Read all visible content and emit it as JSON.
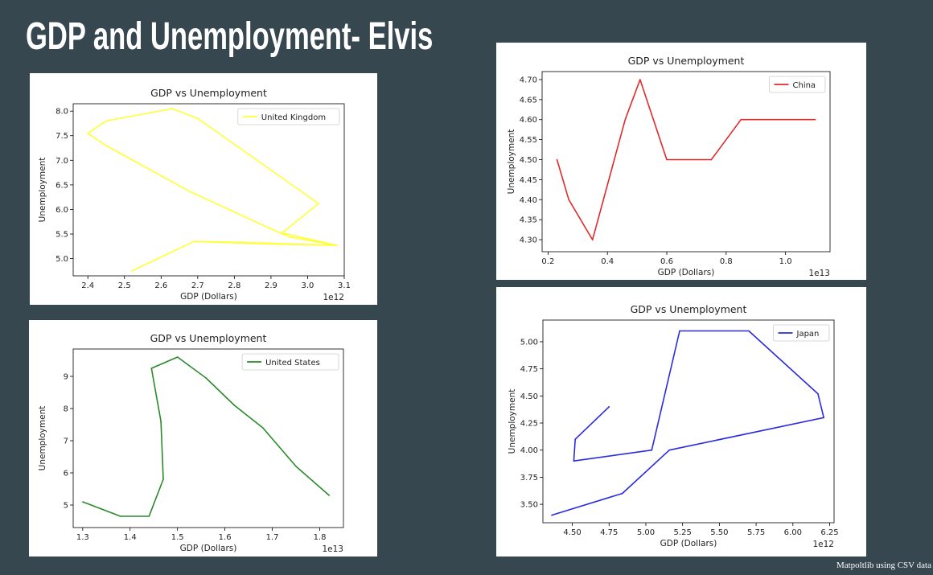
{
  "slide": {
    "title": "GDP and Unemployment- Elvis",
    "footnote": "Matpoltlib  using CSV data"
  },
  "chart_data": [
    {
      "id": "uk",
      "type": "line",
      "title": "GDP vs Unemployment",
      "xlabel": "GDP (Dollars)",
      "ylabel": "Unemployment",
      "x_offset_label": "1e12",
      "xlim": [
        2.36,
        3.1
      ],
      "ylim": [
        4.65,
        8.15
      ],
      "xticks": [
        2.4,
        2.5,
        2.6,
        2.7,
        2.8,
        2.9,
        3.0,
        3.1
      ],
      "xtick_labels": [
        "2.4",
        "2.5",
        "2.6",
        "2.7",
        "2.8",
        "2.9",
        "3.0",
        "3.1"
      ],
      "yticks": [
        5.0,
        5.5,
        6.0,
        6.5,
        7.0,
        7.5,
        8.0
      ],
      "ytick_labels": [
        "5.0",
        "5.5",
        "6.0",
        "6.5",
        "7.0",
        "7.5",
        "8.0"
      ],
      "legend_position": "top-right",
      "series": [
        {
          "name": "United Kingdom",
          "color": "#ffff33",
          "x": [
            2.52,
            2.69,
            2.89,
            3.08,
            2.95,
            2.89,
            2.68,
            2.45,
            2.4,
            2.45,
            2.63,
            2.7,
            3.03,
            2.93,
            3.08,
            2.82,
            2.7
          ],
          "y": [
            4.75,
            5.35,
            5.3,
            5.27,
            5.44,
            5.64,
            6.36,
            7.3,
            7.55,
            7.8,
            8.05,
            7.85,
            6.12,
            5.52,
            5.27,
            5.33,
            5.35
          ]
        }
      ]
    },
    {
      "id": "us",
      "type": "line",
      "title": "GDP vs Unemployment",
      "xlabel": "GDP (Dollars)",
      "ylabel": "Unemployment",
      "x_offset_label": "1e13",
      "xlim": [
        1.28,
        1.85
      ],
      "ylim": [
        4.3,
        9.85
      ],
      "xticks": [
        1.3,
        1.4,
        1.5,
        1.6,
        1.7,
        1.8
      ],
      "xtick_labels": [
        "1.3",
        "1.4",
        "1.5",
        "1.6",
        "1.7",
        "1.8"
      ],
      "yticks": [
        5,
        6,
        7,
        8,
        9
      ],
      "ytick_labels": [
        "5",
        "6",
        "7",
        "8",
        "9"
      ],
      "legend_position": "top-right",
      "series": [
        {
          "name": "United States",
          "color": "#2a8a2a",
          "x": [
            1.3,
            1.38,
            1.44,
            1.47,
            1.465,
            1.445,
            1.5,
            1.56,
            1.62,
            1.68,
            1.75,
            1.82
          ],
          "y": [
            5.1,
            4.65,
            4.65,
            5.8,
            7.6,
            9.25,
            9.6,
            8.95,
            8.1,
            7.4,
            6.2,
            5.3
          ]
        }
      ]
    },
    {
      "id": "china",
      "type": "line",
      "title": "GDP vs Unemployment",
      "xlabel": "GDP (Dollars)",
      "ylabel": "Unemployment",
      "x_offset_label": "1e13",
      "xlim": [
        0.18,
        1.15
      ],
      "ylim": [
        4.27,
        4.72
      ],
      "xticks": [
        0.2,
        0.4,
        0.6,
        0.8,
        1.0
      ],
      "xtick_labels": [
        "0.2",
        "0.4",
        "0.6",
        "0.8",
        "1.0"
      ],
      "yticks": [
        4.3,
        4.35,
        4.4,
        4.45,
        4.5,
        4.55,
        4.6,
        4.65,
        4.7
      ],
      "ytick_labels": [
        "4.30",
        "4.35",
        "4.40",
        "4.45",
        "4.50",
        "4.55",
        "4.60",
        "4.65",
        "4.70"
      ],
      "legend_position": "top-right",
      "series": [
        {
          "name": "China",
          "color": "#e02a2a",
          "x": [
            0.23,
            0.27,
            0.35,
            0.46,
            0.51,
            0.6,
            0.75,
            0.85,
            0.96,
            1.1
          ],
          "y": [
            4.5,
            4.4,
            4.3,
            4.6,
            4.7,
            4.5,
            4.5,
            4.6,
            4.6,
            4.6
          ]
        }
      ]
    },
    {
      "id": "japan",
      "type": "line",
      "title": "GDP vs Unemployment",
      "xlabel": "GDP (Dollars)",
      "ylabel": "Unemployment",
      "x_offset_label": "1e12",
      "xlim": [
        4.3,
        6.28
      ],
      "ylim": [
        3.33,
        5.2
      ],
      "xticks": [
        4.5,
        4.75,
        5.0,
        5.25,
        5.5,
        5.75,
        6.0,
        6.25
      ],
      "xtick_labels": [
        "4.50",
        "4.75",
        "5.00",
        "5.25",
        "5.50",
        "5.75",
        "6.00",
        "6.25"
      ],
      "yticks": [
        3.5,
        3.75,
        4.0,
        4.25,
        4.5,
        4.75,
        5.0
      ],
      "ytick_labels": [
        "3.50",
        "3.75",
        "4.00",
        "4.25",
        "4.50",
        "4.75",
        "5.00"
      ],
      "legend_position": "top-right",
      "series": [
        {
          "name": "Japan",
          "color": "#2a2ae0",
          "x": [
            4.75,
            4.52,
            4.51,
            5.04,
            5.23,
            5.7,
            6.17,
            6.21,
            5.16,
            4.84,
            4.36
          ],
          "y": [
            4.4,
            4.1,
            3.9,
            4.0,
            5.1,
            5.1,
            4.52,
            4.3,
            4.0,
            3.6,
            3.4
          ]
        }
      ]
    }
  ]
}
